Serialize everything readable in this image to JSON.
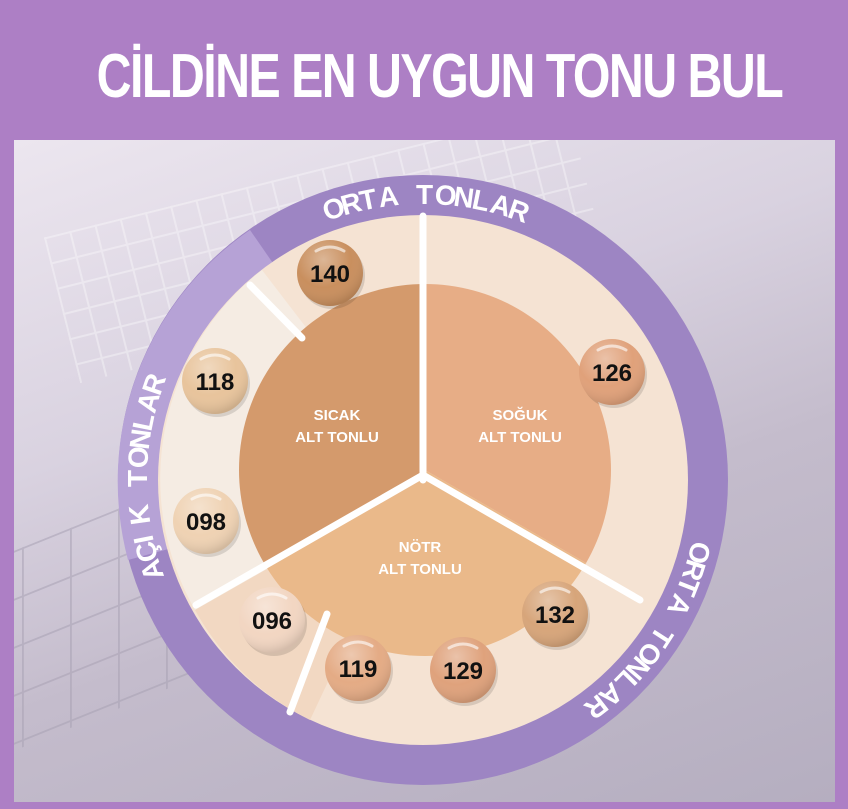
{
  "title": "CİLDİNE EN UYGUN TONU BUL",
  "ring_labels": {
    "top": "ORTA TONLAR",
    "left": "AÇIK TONLAR",
    "bottom_right": "ORTA TONLAR"
  },
  "undertones": [
    {
      "line1": "SICAK",
      "line2": "ALT TONLU",
      "color": "#d49a6c"
    },
    {
      "line1": "SOĞUK",
      "line2": "ALT TONLU",
      "color": "#e7ad86"
    },
    {
      "line1": "NÖTR",
      "line2": "ALT TONLU",
      "color": "#eab98a"
    }
  ],
  "shades": [
    {
      "code": "140",
      "color": "#c98f5e"
    },
    {
      "code": "118",
      "color": "#e8c49c"
    },
    {
      "code": "098",
      "color": "#efd2b3"
    },
    {
      "code": "126",
      "color": "#e0a17a"
    },
    {
      "code": "096",
      "color": "#f2d6c2"
    },
    {
      "code": "119",
      "color": "#e4ab85"
    },
    {
      "code": "129",
      "color": "#dfa27c"
    },
    {
      "code": "132",
      "color": "#d7a57a"
    }
  ],
  "colors": {
    "header": "#ad7fc5",
    "ring": "#9d85c3",
    "ring_light": "#b6a2d6"
  }
}
